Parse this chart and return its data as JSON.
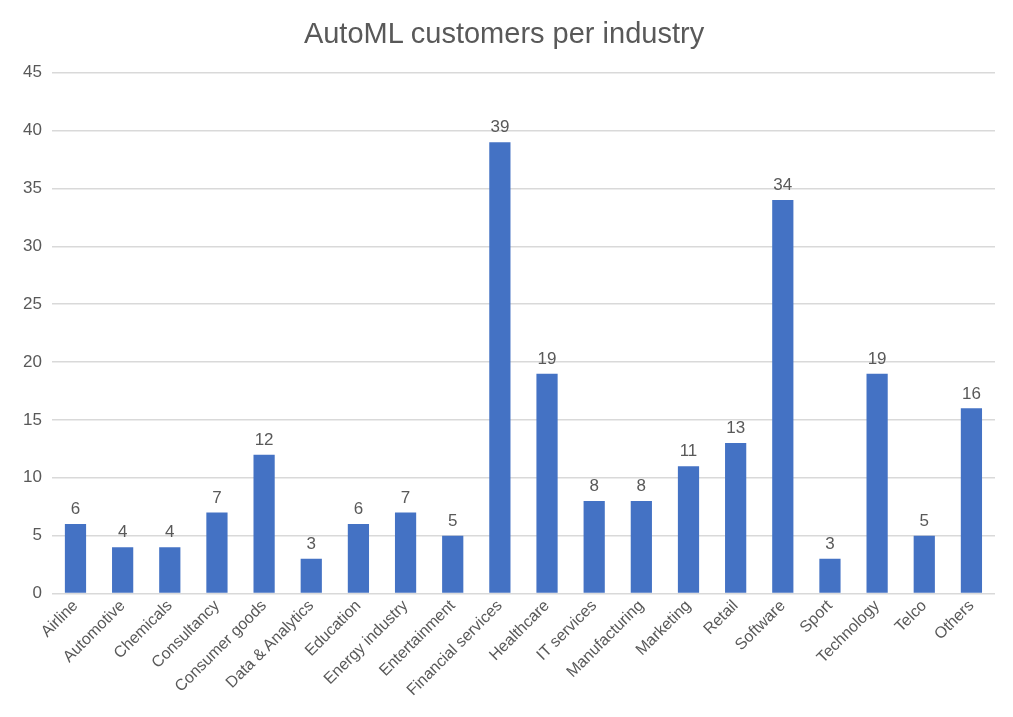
{
  "chart_data": {
    "type": "bar",
    "title": "AutoML customers per industry",
    "categories": [
      "Airline",
      "Automotive",
      "Chemicals",
      "Consultancy",
      "Consumer goods",
      "Data & Analytics",
      "Education",
      "Energy industry",
      "Entertainment",
      "Financial services",
      "Healthcare",
      "IT services",
      "Manufacturing",
      "Marketing",
      "Retail",
      "Software",
      "Sport",
      "Technology",
      "Telco",
      "Others"
    ],
    "values": [
      6,
      4,
      4,
      7,
      12,
      3,
      6,
      7,
      5,
      39,
      19,
      8,
      8,
      11,
      13,
      34,
      3,
      19,
      5,
      16
    ],
    "color": "#4472c4",
    "ylim": [
      0,
      45
    ],
    "yticks": [
      0,
      5,
      10,
      15,
      20,
      25,
      30,
      35,
      40,
      45
    ],
    "grid": "y",
    "data_labels": true,
    "legend": false
  }
}
